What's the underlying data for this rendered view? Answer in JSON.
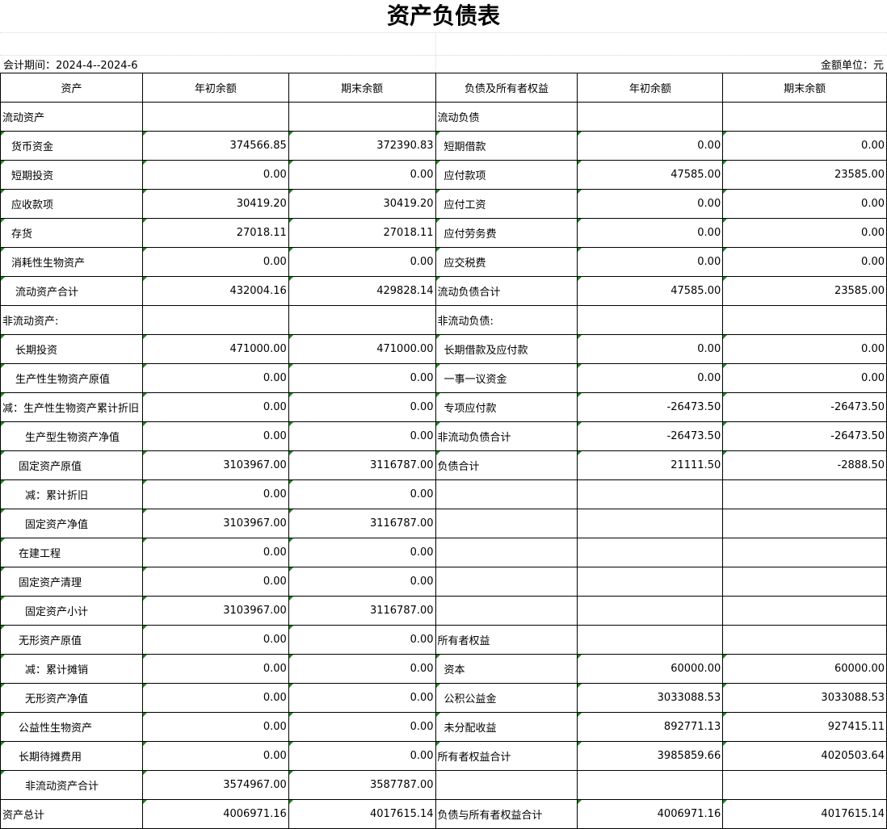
{
  "title": "资产负债表",
  "period": "会计期间：2024-4--2024-6",
  "unit": "金额单位：元",
  "headers": [
    "资产",
    "年初余额",
    "期末余额",
    "负债及所有者权益",
    "年初余额",
    "期末余额"
  ],
  "rows": [
    [
      "流动资产",
      "",
      "",
      "流动负债",
      "",
      ""
    ],
    [
      "货币资金",
      "374566.85",
      "372390.83",
      "短期借款",
      "0.00",
      "0.00"
    ],
    [
      "短期投资",
      "0.00",
      "0.00",
      "应付款项",
      "47585.00",
      "23585.00"
    ],
    [
      "应收款项",
      "30419.20",
      "30419.20",
      "应付工资",
      "0.00",
      "0.00"
    ],
    [
      "存货",
      "27018.11",
      "27018.11",
      "应付劳务费",
      "0.00",
      "0.00"
    ],
    [
      "消耗性生物资产",
      "0.00",
      "0.00",
      "应交税费",
      "0.00",
      "0.00"
    ],
    [
      "流动资产合计",
      "432004.16",
      "429828.14",
      "流动负债合计",
      "47585.00",
      "23585.00"
    ],
    [
      "非流动资产:",
      "",
      "",
      "非流动负债:",
      "",
      ""
    ],
    [
      "长期投资",
      "471000.00",
      "471000.00",
      "长期借款及应付款",
      "0.00",
      "0.00"
    ],
    [
      "生产性生物资产原值",
      "0.00",
      "0.00",
      "一事一议资金",
      "0.00",
      "0.00"
    ],
    [
      "减：生产性生物资产累计折旧",
      "0.00",
      "0.00",
      "专项应付款",
      "-26473.50",
      "-26473.50"
    ],
    [
      "生产型生物资产净值",
      "0.00",
      "0.00",
      "非流动负债合计",
      "-26473.50",
      "-26473.50"
    ],
    [
      "固定资产原值",
      "3103967.00",
      "3116787.00",
      "负债合计",
      "21111.50",
      "-2888.50"
    ],
    [
      "减：累计折旧",
      "0.00",
      "0.00",
      "",
      "",
      ""
    ],
    [
      "固定资产净值",
      "3103967.00",
      "3116787.00",
      "",
      "",
      ""
    ],
    [
      "在建工程",
      "0.00",
      "0.00",
      "",
      "",
      ""
    ],
    [
      "固定资产清理",
      "0.00",
      "0.00",
      "",
      "",
      ""
    ],
    [
      "固定资产小计",
      "3103967.00",
      "3116787.00",
      "",
      "",
      ""
    ],
    [
      "无形资产原值",
      "0.00",
      "0.00",
      "所有者权益",
      "",
      ""
    ],
    [
      "减：累计摊销",
      "0.00",
      "0.00",
      "资本",
      "60000.00",
      "60000.00"
    ],
    [
      "无形资产净值",
      "0.00",
      "0.00",
      "公积公益金",
      "3033088.53",
      "3033088.53"
    ],
    [
      "公益性生物资产",
      "0.00",
      "0.00",
      "未分配收益",
      "892771.13",
      "927415.11"
    ],
    [
      "长期待摊费用",
      "0.00",
      "0.00",
      "所有者权益合计",
      "3985859.66",
      "4020503.64"
    ],
    [
      "非流动资产合计",
      "3574967.00",
      "3587787.00",
      "",
      "",
      ""
    ],
    [
      "资产总计",
      "4006971.16",
      "4017615.14",
      "负债与所有者权益合计",
      "4006971.16",
      "4017615.14"
    ]
  ]
}
